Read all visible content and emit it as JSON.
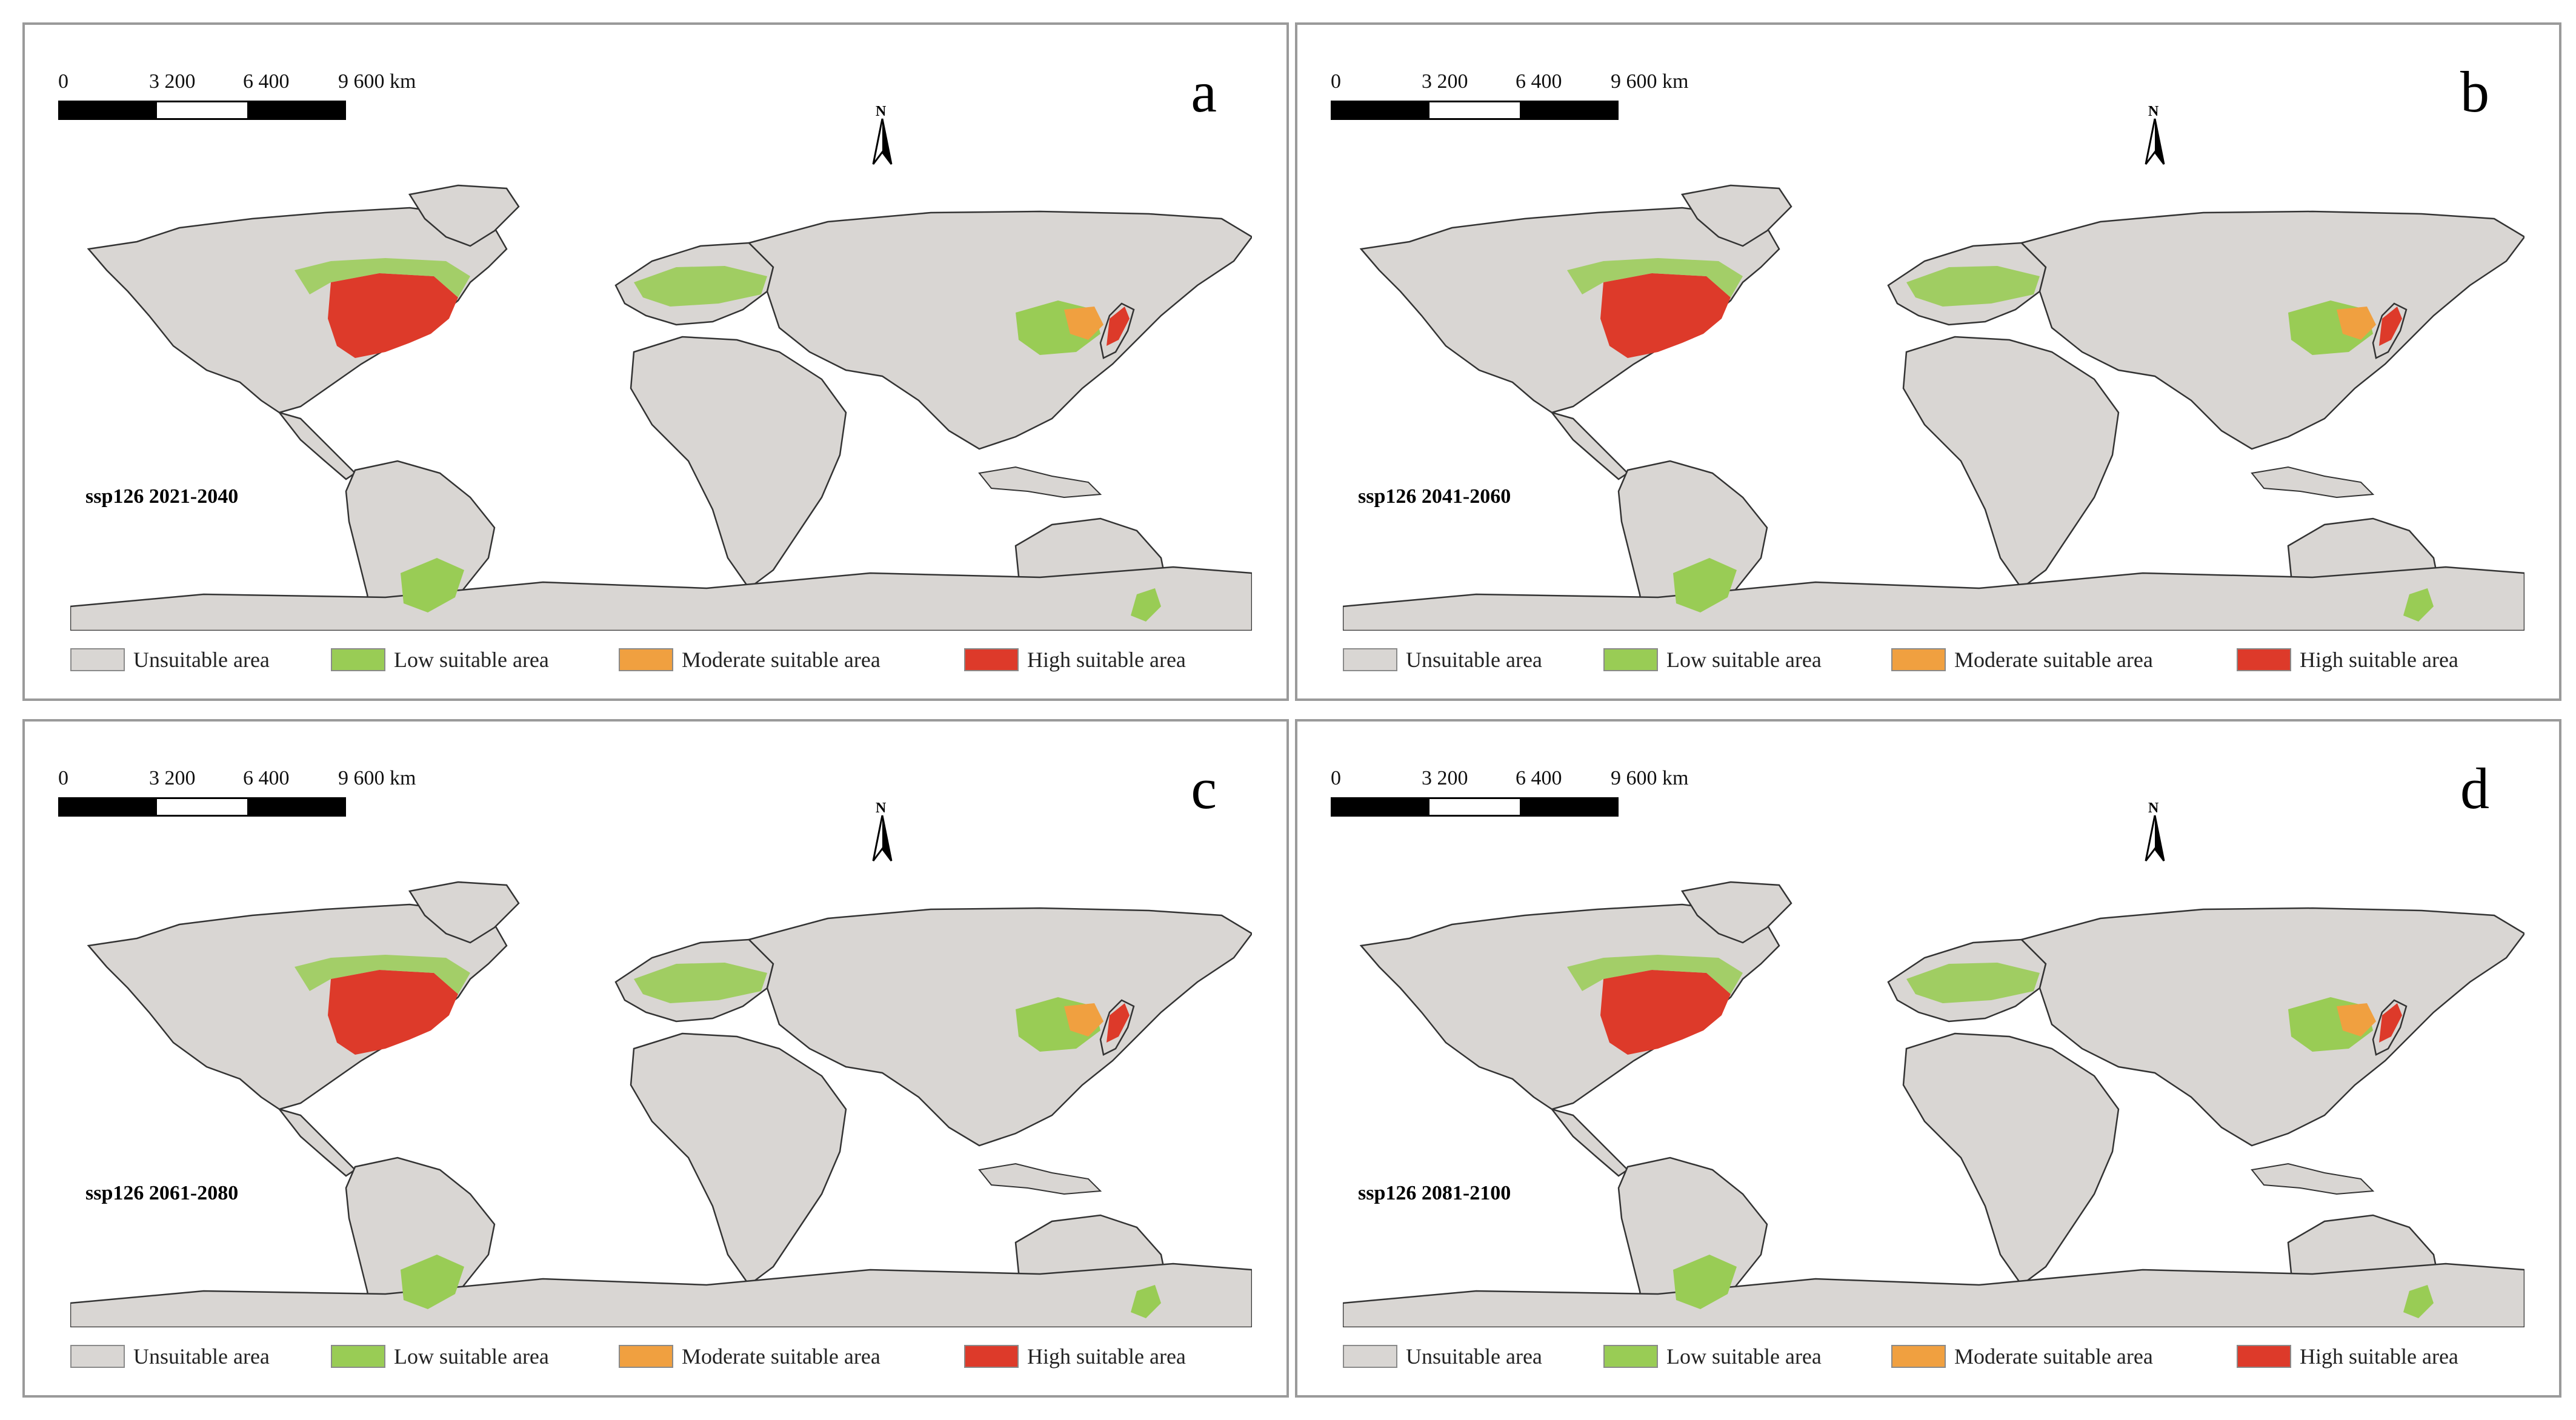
{
  "scale": {
    "labels": [
      "0",
      "3 200",
      "6 400",
      "9 600 km"
    ]
  },
  "north_label": "N",
  "colors": {
    "ocean": "#ffffff",
    "land": "#d9d6d3",
    "border": "#333333",
    "unsuitable": "#d9d6d3",
    "low": "#99cc55",
    "moderate": "#f0a040",
    "high": "#dd3a2a"
  },
  "legend": [
    {
      "label": "Unsuitable area",
      "color": "#d9d6d3"
    },
    {
      "label": "Low suitable area",
      "color": "#99cc55"
    },
    {
      "label": "Moderate suitable area",
      "color": "#f0a040"
    },
    {
      "label": "High suitable area",
      "color": "#dd3a2a"
    }
  ],
  "panels": [
    {
      "letter": "a",
      "scenario": "ssp126  2021-2040"
    },
    {
      "letter": "b",
      "scenario": "ssp126  2041-2060"
    },
    {
      "letter": "c",
      "scenario": "ssp126  2061-2080"
    },
    {
      "letter": "d",
      "scenario": "ssp126  2081-2100"
    }
  ]
}
